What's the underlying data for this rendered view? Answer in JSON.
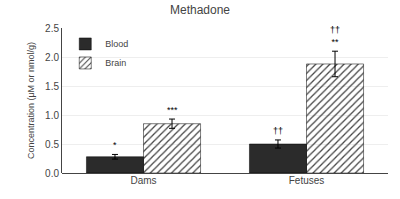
{
  "chart_data": {
    "type": "bar",
    "title": "Methadone",
    "y_label": "Concentration (μM or nmol/g)",
    "categories": [
      "Dams",
      "Fetuses"
    ],
    "series": [
      {
        "name": "Blood",
        "color": "#2b2b2b",
        "values": [
          0.28,
          0.5
        ],
        "errors": [
          0.04,
          0.07
        ]
      },
      {
        "name": "Brain",
        "color": "#b0b0b0",
        "marker": "hatch",
        "values": [
          0.85,
          1.88
        ],
        "errors": [
          0.08,
          0.22
        ]
      }
    ],
    "ylim": [
      0,
      2.5
    ],
    "yticks": [
      {
        "value": 0,
        "label": "0.0"
      },
      0.5,
      {
        "value": 1,
        "label": "1.0"
      },
      1.5,
      {
        "value": 2,
        "label": "2.0"
      },
      2.5
    ],
    "legend": "upper left",
    "annotations": [
      {
        "category": "Dams",
        "series": "Blood",
        "text": "*"
      },
      {
        "category": "Dams",
        "series": "Brain",
        "text": "***"
      },
      {
        "category": "Fetuses",
        "series": "Blood",
        "text": "††"
      },
      {
        "category": "Fetuses",
        "series": "Brain",
        "text": "††\n**"
      }
    ]
  }
}
